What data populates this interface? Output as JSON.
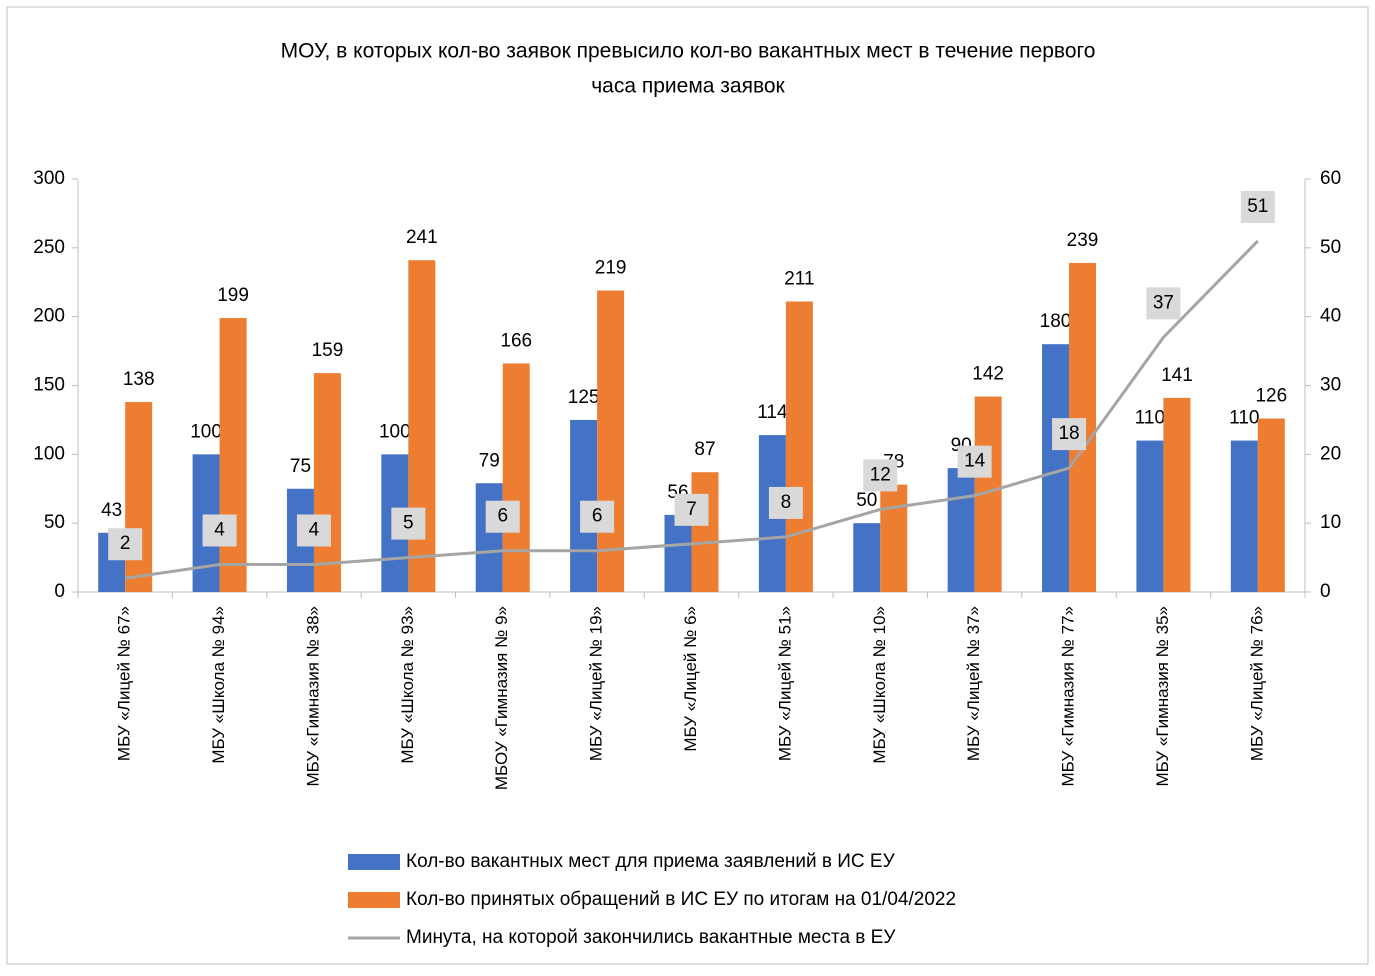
{
  "chart_data": {
    "type": "bar_line",
    "title": [
      "МОУ, в которых кол-во заявок превысило кол-во вакантных мест в течение первого",
      "часа приема заявок"
    ],
    "categories": [
      "МБУ «Лицей № 67»",
      "МБУ «Школа № 94»",
      "МБУ «Гимназия № 38»",
      "МБУ «Школа № 93»",
      "МБОУ «Гимназия № 9»",
      "МБУ «Лицей № 19»",
      "МБУ «Лицей № 6»",
      "МБУ «Лицей № 51»",
      "МБУ «Школа № 10»",
      "МБУ «Лицей № 37»",
      "МБУ «Гимназия № 77»",
      "МБУ «Гимназия № 35»",
      "МБУ «Лицей № 76»"
    ],
    "series": [
      {
        "name": "Кол-во вакантных мест для приема заявлений в ИС ЕУ",
        "type": "bar",
        "color": "#4472c4",
        "values": [
          43,
          100,
          75,
          100,
          79,
          125,
          56,
          114,
          50,
          90,
          180,
          110,
          110
        ]
      },
      {
        "name": "Кол-во принятых обращений в ИС ЕУ по итогам на 01/04/2022",
        "type": "bar",
        "color": "#ed7d31",
        "values": [
          138,
          199,
          159,
          241,
          166,
          219,
          87,
          211,
          78,
          142,
          239,
          141,
          126
        ]
      },
      {
        "name": "Минута, на которой закончились вакантные места в ЕУ",
        "type": "line",
        "axis": "y2",
        "color": "#a5a5a5",
        "values": [
          2,
          4,
          4,
          5,
          6,
          6,
          7,
          8,
          12,
          14,
          18,
          37,
          51
        ]
      }
    ],
    "ylim": [
      0,
      300
    ],
    "yticks": [
      0,
      50,
      100,
      150,
      200,
      250,
      300
    ],
    "y2lim": [
      0,
      60
    ],
    "y2ticks": [
      0,
      10,
      20,
      30,
      40,
      50,
      60
    ],
    "legend": "bottom"
  }
}
